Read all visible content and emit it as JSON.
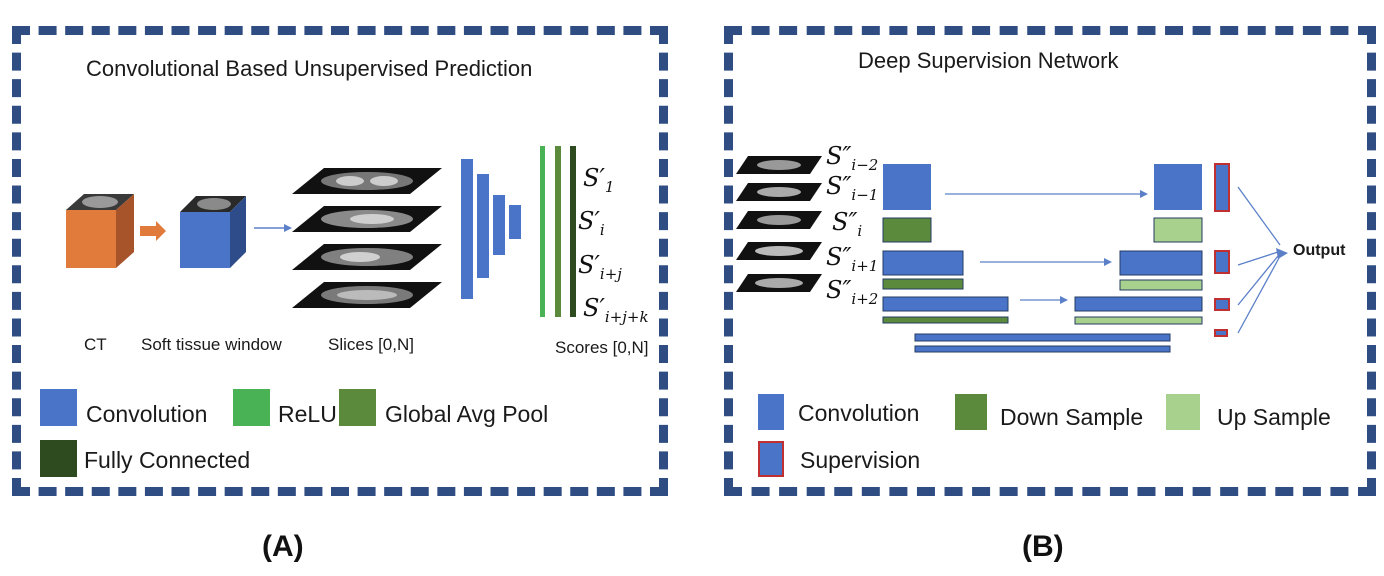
{
  "panel_a": {
    "title": "Convolutional Based Unsupervised Prediction",
    "labels": {
      "ct": "CT",
      "soft_tissue": "Soft tissue window",
      "slices": "Slices [0,N]",
      "scores": "Scores [0,N]"
    },
    "score_labels": [
      {
        "base": "S′",
        "sub": "1"
      },
      {
        "base": "S′",
        "sub": "i"
      },
      {
        "base": "S′",
        "sub": "i+j"
      },
      {
        "base": "S′",
        "sub": "i+j+k"
      }
    ],
    "legend": {
      "convolution": "Convolution",
      "relu": "ReLU",
      "global_avg_pool": "Global Avg Pool",
      "fully_connected": "Fully Connected"
    },
    "caption": "(A)"
  },
  "panel_b": {
    "title": "Deep Supervision Network",
    "slice_labels": [
      {
        "base": "S″",
        "sub": "i−2"
      },
      {
        "base": "S″",
        "sub": "i−1"
      },
      {
        "base": "S″",
        "sub": "i"
      },
      {
        "base": "S″",
        "sub": "i+1"
      },
      {
        "base": "S″",
        "sub": "i+2"
      }
    ],
    "output": "Output",
    "legend": {
      "convolution": "Convolution",
      "down_sample": "Down Sample",
      "up_sample": "Up Sample",
      "supervision": "Supervision"
    },
    "caption": "(B)"
  },
  "colors": {
    "border": "#2f4d83",
    "convolution": "#4a74c8",
    "relu": "#49b254",
    "global_avg_pool": "#5b8a3c",
    "fully_connected": "#2e4a1f",
    "down_sample": "#5b8a3c",
    "up_sample": "#a9d18e",
    "supervision_border": "#c03030",
    "ct_cube": "#e07b3c"
  }
}
